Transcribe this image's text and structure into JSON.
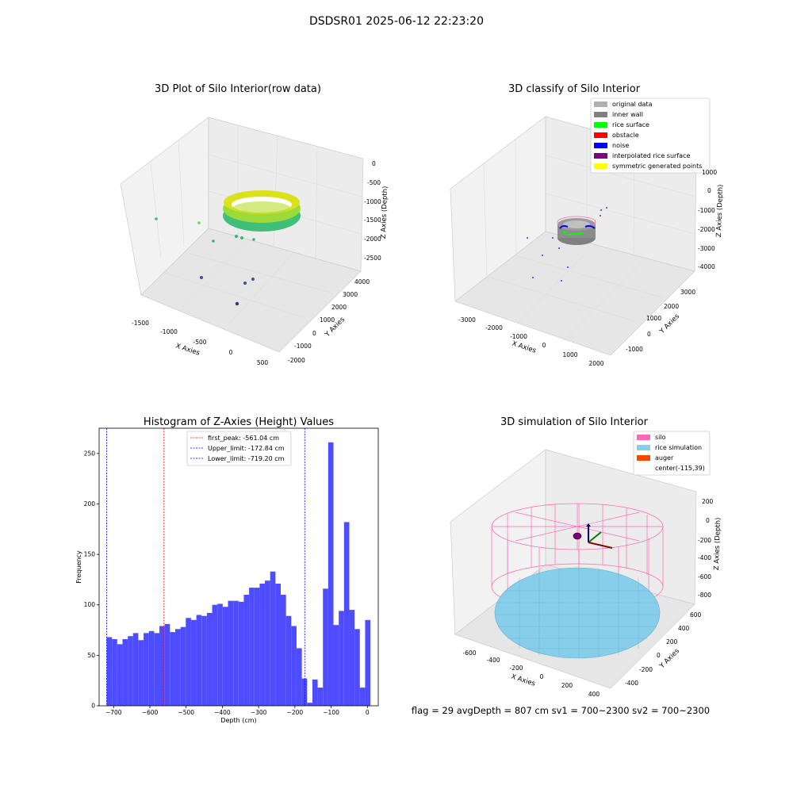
{
  "suptitle": "DSDSR01 2025-06-12 22:23:20",
  "footer": "flag = 29  avgDepth = 807 cm  sv1 = 700~2300  sv2 = 700~2300",
  "panel1": {
    "title": "3D Plot of Silo Interior(row data)",
    "xlabel": "X Axies",
    "ylabel": "Y Axies",
    "zlabel": "Z Axies (Depth)",
    "xticks": [
      "-1500",
      "-1000",
      "-500",
      "0",
      "500"
    ],
    "yticks": [
      "-2000",
      "-1000",
      "0",
      "1000",
      "2000",
      "3000",
      "4000"
    ],
    "zticks": [
      "0",
      "-500",
      "-1000",
      "-1500",
      "-2000",
      "-2500"
    ]
  },
  "panel2": {
    "title": "3D classify of Silo Interior",
    "xlabel": "X Axies",
    "ylabel": "Y Axies",
    "zlabel": "Z Axies (Depth)",
    "xticks": [
      "-3000",
      "-2000",
      "-1000",
      "0",
      "1000",
      "2000"
    ],
    "yticks": [
      "-1000",
      "0",
      "1000",
      "2000",
      "3000"
    ],
    "zticks": [
      "1000",
      "0",
      "-1000",
      "-2000",
      "-3000",
      "-4000"
    ],
    "legend": [
      {
        "label": "original data",
        "color": "#b0b0b0"
      },
      {
        "label": "inner wall",
        "color": "#808080"
      },
      {
        "label": "rice surface",
        "color": "#00ff00"
      },
      {
        "label": "obstacle",
        "color": "#ff0000"
      },
      {
        "label": "noise",
        "color": "#0000ff"
      },
      {
        "label": "interpolated rice surface",
        "color": "#800080"
      },
      {
        "label": "symmetric generated points",
        "color": "#ffff00"
      }
    ]
  },
  "panel4": {
    "title": "3D simulation of Silo Interior",
    "xlabel": "X Axies",
    "ylabel": "Y Axies",
    "zlabel": "Z Axies (Depth)",
    "xticks": [
      "-600",
      "-400",
      "-200",
      "0",
      "200",
      "400"
    ],
    "yticks": [
      "-400",
      "-200",
      "0",
      "200",
      "400",
      "600"
    ],
    "zticks": [
      "200",
      "0",
      "-200",
      "-400",
      "-600",
      "-800"
    ],
    "legend": [
      {
        "label": "silo",
        "color": "#ff69b4"
      },
      {
        "label": "rice simulation",
        "color": "#87ceeb"
      },
      {
        "label": "auger",
        "color": "#ff4500"
      },
      {
        "label": "center(-115,39)",
        "color": ""
      }
    ]
  },
  "chart_data": {
    "type": "bar",
    "title": "Histogram of Z-Axies (Height) Values",
    "xlabel": "Depth (cm)",
    "ylabel": "Frequency",
    "xlim": [
      -740,
      30
    ],
    "ylim": [
      0,
      275
    ],
    "xticks": [
      -700,
      -600,
      -500,
      -400,
      -300,
      -200,
      -100,
      0
    ],
    "yticks": [
      0,
      50,
      100,
      150,
      200,
      250
    ],
    "bin_start": -719.2,
    "bin_width": 14.55,
    "values": [
      68,
      66,
      61,
      66,
      69,
      72,
      65,
      72,
      74,
      72,
      79,
      81,
      73,
      76,
      78,
      87,
      85,
      90,
      89,
      92,
      100,
      101,
      98,
      104,
      104,
      103,
      110,
      117,
      117,
      121,
      124,
      133,
      121,
      110,
      89,
      79,
      57,
      27,
      3,
      26,
      18,
      116,
      261,
      80,
      94,
      182,
      95,
      76,
      18,
      85
    ],
    "vlines": [
      {
        "label": "first_peak: -561.04 cm",
        "x": -561.04,
        "color": "#ff0000"
      },
      {
        "label": "Upper_limit: -172.84 cm",
        "x": -172.84,
        "color": "#0000ff"
      },
      {
        "label": "Lower_limit: -719.20 cm",
        "x": -719.2,
        "color": "#0000ff"
      }
    ],
    "bar_color": "#4d4dff",
    "legend_position": "top-center"
  }
}
